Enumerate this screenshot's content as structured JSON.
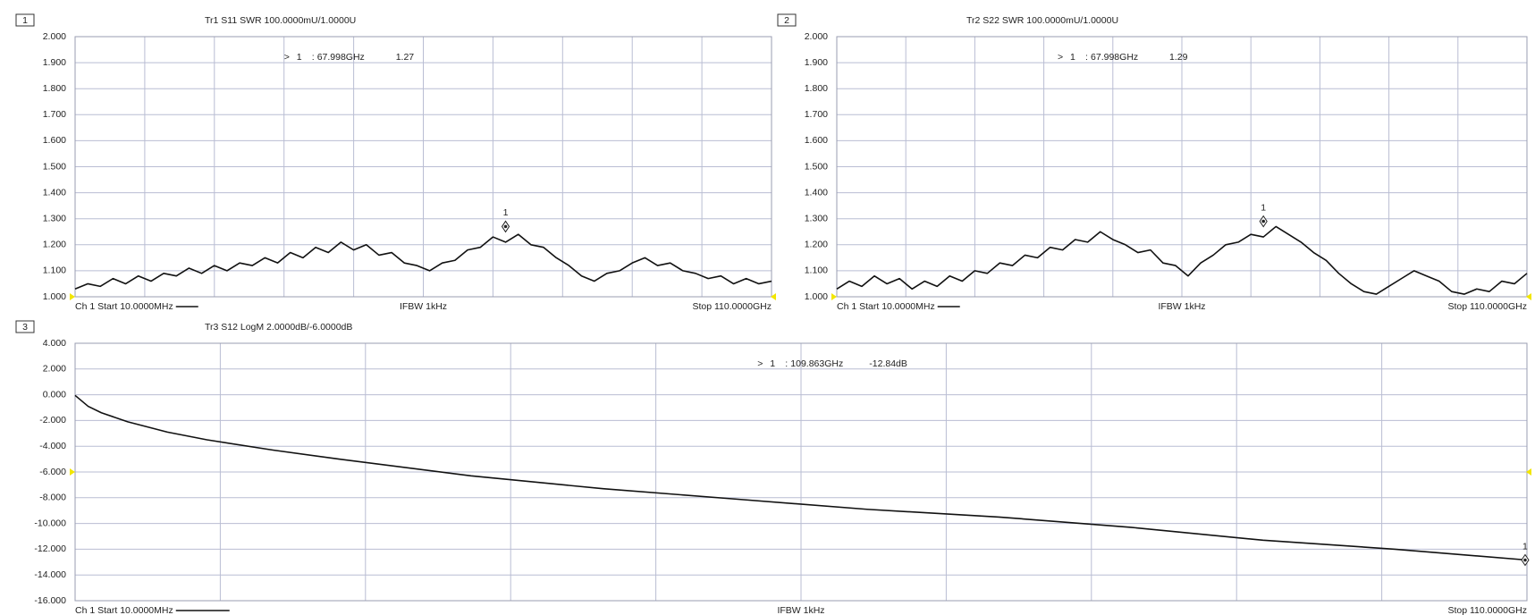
{
  "chart_data": [
    {
      "type": "line",
      "panel": "1",
      "title": "Tr1 S11 SWR 100.0000mU/1.0000U",
      "start_label": "Ch 1 Start 10.0000MHz",
      "center_label": "IFBW 1kHz",
      "stop_label": "Stop 110.0000GHz",
      "xlim": [
        0.01,
        110
      ],
      "ylim": [
        1.0,
        2.0
      ],
      "yticks": [
        {
          "value": 2.0,
          "label": "2.000"
        },
        {
          "value": 1.9,
          "label": "1.900"
        },
        {
          "value": 1.8,
          "label": "1.800"
        },
        {
          "value": 1.7,
          "label": "1.700"
        },
        {
          "value": 1.6,
          "label": "1.600"
        },
        {
          "value": 1.5,
          "label": "1.500"
        },
        {
          "value": 1.4,
          "label": "1.400"
        },
        {
          "value": 1.3,
          "label": "1.300"
        },
        {
          "value": 1.2,
          "label": "1.200"
        },
        {
          "value": 1.1,
          "label": "1.100"
        },
        {
          "value": 1.0,
          "label": "1.000"
        }
      ],
      "grid": true,
      "color": "#111111",
      "reference": 1.0,
      "reference_color": "#f2e600",
      "x": [
        0.01,
        2,
        4,
        6,
        8,
        10,
        12,
        14,
        16,
        18,
        20,
        22,
        24,
        26,
        28,
        30,
        32,
        34,
        36,
        38,
        40,
        42,
        44,
        46,
        48,
        50,
        52,
        54,
        56,
        58,
        60,
        62,
        64,
        66,
        68,
        70,
        72,
        74,
        76,
        78,
        80,
        82,
        84,
        86,
        88,
        90,
        92,
        94,
        96,
        98,
        100,
        102,
        104,
        106,
        108,
        110
      ],
      "values": [
        1.03,
        1.05,
        1.04,
        1.07,
        1.05,
        1.08,
        1.06,
        1.09,
        1.08,
        1.11,
        1.09,
        1.12,
        1.1,
        1.13,
        1.12,
        1.15,
        1.13,
        1.17,
        1.15,
        1.19,
        1.17,
        1.21,
        1.18,
        1.2,
        1.16,
        1.17,
        1.13,
        1.12,
        1.1,
        1.13,
        1.14,
        1.18,
        1.19,
        1.23,
        1.21,
        1.24,
        1.2,
        1.19,
        1.15,
        1.12,
        1.08,
        1.06,
        1.09,
        1.1,
        1.13,
        1.15,
        1.12,
        1.13,
        1.1,
        1.09,
        1.07,
        1.08,
        1.05,
        1.07,
        1.05,
        1.06
      ],
      "marker": {
        "active": ">",
        "id": "1",
        "separator": ":",
        "x": 67.998,
        "x_label": "67.998GHz",
        "value": 1.27
      }
    },
    {
      "type": "line",
      "panel": "2",
      "title": "Tr2 S22 SWR 100.0000mU/1.0000U",
      "start_label": "Ch 1 Start 10.0000MHz",
      "center_label": "IFBW 1kHz",
      "stop_label": "Stop 110.0000GHz",
      "xlim": [
        0.01,
        110
      ],
      "ylim": [
        1.0,
        2.0
      ],
      "yticks": [
        {
          "value": 2.0,
          "label": "2.000"
        },
        {
          "value": 1.9,
          "label": "1.900"
        },
        {
          "value": 1.8,
          "label": "1.800"
        },
        {
          "value": 1.7,
          "label": "1.700"
        },
        {
          "value": 1.6,
          "label": "1.600"
        },
        {
          "value": 1.5,
          "label": "1.500"
        },
        {
          "value": 1.4,
          "label": "1.400"
        },
        {
          "value": 1.3,
          "label": "1.300"
        },
        {
          "value": 1.2,
          "label": "1.200"
        },
        {
          "value": 1.1,
          "label": "1.100"
        },
        {
          "value": 1.0,
          "label": "1.000"
        }
      ],
      "grid": true,
      "color": "#111111",
      "reference": 1.0,
      "reference_color": "#f2e600",
      "x": [
        0.01,
        2,
        4,
        6,
        8,
        10,
        12,
        14,
        16,
        18,
        20,
        22,
        24,
        26,
        28,
        30,
        32,
        34,
        36,
        38,
        40,
        42,
        44,
        46,
        48,
        50,
        52,
        54,
        56,
        58,
        60,
        62,
        64,
        66,
        68,
        70,
        72,
        74,
        76,
        78,
        80,
        82,
        84,
        86,
        88,
        90,
        92,
        94,
        96,
        98,
        100,
        102,
        104,
        106,
        108,
        110
      ],
      "values": [
        1.03,
        1.06,
        1.04,
        1.08,
        1.05,
        1.07,
        1.03,
        1.06,
        1.04,
        1.08,
        1.06,
        1.1,
        1.09,
        1.13,
        1.12,
        1.16,
        1.15,
        1.19,
        1.18,
        1.22,
        1.21,
        1.25,
        1.22,
        1.2,
        1.17,
        1.18,
        1.13,
        1.12,
        1.08,
        1.13,
        1.16,
        1.2,
        1.21,
        1.24,
        1.23,
        1.27,
        1.24,
        1.21,
        1.17,
        1.14,
        1.09,
        1.05,
        1.02,
        1.01,
        1.04,
        1.07,
        1.1,
        1.08,
        1.06,
        1.02,
        1.01,
        1.03,
        1.02,
        1.06,
        1.05,
        1.09
      ],
      "marker": {
        "active": ">",
        "id": "1",
        "separator": ":",
        "x": 67.998,
        "x_label": "67.998GHz",
        "value": 1.29
      }
    },
    {
      "type": "line",
      "panel": "3",
      "title": "Tr3 S12 LogM 2.0000dB/-6.0000dB",
      "start_label": "Ch 1 Start 10.0000MHz",
      "center_label": "IFBW 1kHz",
      "stop_label": "Stop 110.0000GHz",
      "xlim": [
        0.01,
        110
      ],
      "ylim": [
        -16.0,
        4.0
      ],
      "yticks": [
        {
          "value": 4.0,
          "label": "4.000"
        },
        {
          "value": 2.0,
          "label": "2.000"
        },
        {
          "value": 0.0,
          "label": "0.000"
        },
        {
          "value": -2.0,
          "label": "-2.000"
        },
        {
          "value": -4.0,
          "label": "-4.000"
        },
        {
          "value": -6.0,
          "label": "-6.000"
        },
        {
          "value": -8.0,
          "label": "-8.000"
        },
        {
          "value": -10.0,
          "label": "-10.000"
        },
        {
          "value": -12.0,
          "label": "-12.000"
        },
        {
          "value": -14.0,
          "label": "-14.000"
        },
        {
          "value": -16.0,
          "label": "-16.000"
        }
      ],
      "grid": true,
      "color": "#111111",
      "reference": -6.0,
      "reference_color": "#f2e600",
      "x": [
        0.01,
        1,
        2,
        4,
        7,
        10,
        15,
        20,
        30,
        40,
        50,
        60,
        70,
        80,
        90,
        100,
        110
      ],
      "values": [
        -0.05,
        -0.9,
        -1.4,
        -2.1,
        -2.9,
        -3.5,
        -4.3,
        -5.0,
        -6.3,
        -7.3,
        -8.1,
        -8.9,
        -9.5,
        -10.3,
        -11.3,
        -12.0,
        -12.84
      ],
      "marker": {
        "active": ">",
        "id": "1",
        "separator": ":",
        "x": 109.863,
        "x_label": "109.863GHz",
        "value": -12.84,
        "value_label": "-12.84dB"
      }
    }
  ]
}
